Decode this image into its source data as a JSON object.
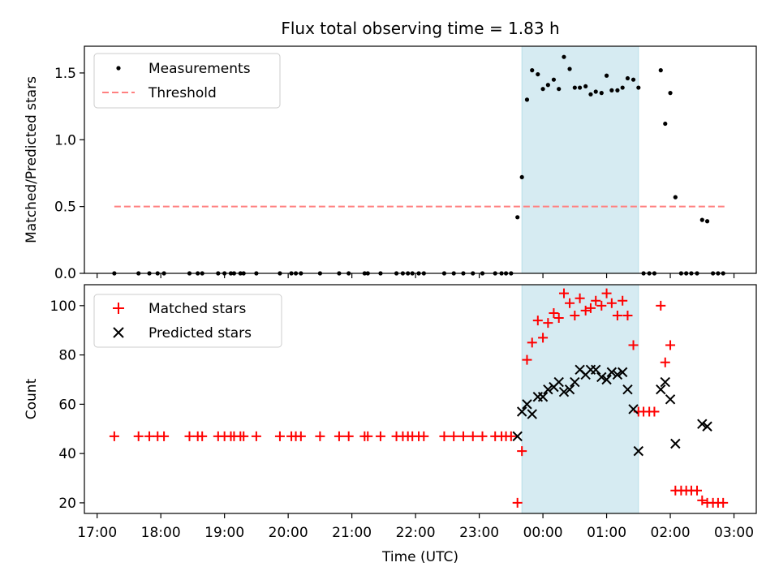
{
  "chart_data": [
    {
      "type": "scatter",
      "title": "Flux total observing time = 1.83 h",
      "xlabel": "",
      "ylabel": "Matched/Predicted stars",
      "xlim": [
        16.8,
        27.35
      ],
      "ylim": [
        0,
        1.7
      ],
      "yticks": [
        0,
        0.5,
        1.0,
        1.5
      ],
      "ytick_labels": [
        "0.0",
        "0.5",
        "1.0",
        "1.5"
      ],
      "shaded_span": [
        23.67,
        25.5
      ],
      "legend_position": "upper-left",
      "series": [
        {
          "name": "Measurements",
          "marker": "dot",
          "color": "#000000",
          "x": [
            17.27,
            17.65,
            17.82,
            17.95,
            18.05,
            18.45,
            18.58,
            18.65,
            18.9,
            19.0,
            19.1,
            19.15,
            19.25,
            19.3,
            19.5,
            19.87,
            20.05,
            20.12,
            20.2,
            20.5,
            20.8,
            20.95,
            21.2,
            21.25,
            21.45,
            21.7,
            21.8,
            21.88,
            21.95,
            22.05,
            22.13,
            22.45,
            22.6,
            22.75,
            22.9,
            23.05,
            23.25,
            23.35,
            23.42,
            23.5,
            23.6,
            23.67,
            23.75,
            23.83,
            23.92,
            24.0,
            24.08,
            24.17,
            24.25,
            24.33,
            24.42,
            24.5,
            24.58,
            24.67,
            24.75,
            24.83,
            24.92,
            25.0,
            25.08,
            25.17,
            25.25,
            25.33,
            25.42,
            25.5,
            25.58,
            25.67,
            25.75,
            25.85,
            25.92,
            26.0,
            26.08,
            26.17,
            26.25,
            26.33,
            26.42,
            26.5,
            26.58,
            26.67,
            26.75,
            26.83
          ],
          "y": [
            0,
            0,
            0,
            0,
            0,
            0,
            0,
            0,
            0,
            0,
            0,
            0,
            0,
            0,
            0,
            0,
            0,
            0,
            0,
            0,
            0,
            0,
            0,
            0,
            0,
            0,
            0,
            0,
            0,
            0,
            0,
            0,
            0,
            0,
            0,
            0,
            0,
            0,
            0,
            0,
            0.42,
            0.72,
            1.3,
            1.52,
            1.49,
            1.38,
            1.41,
            1.45,
            1.38,
            1.62,
            1.53,
            1.39,
            1.39,
            1.4,
            1.34,
            1.36,
            1.35,
            1.48,
            1.37,
            1.37,
            1.39,
            1.46,
            1.45,
            1.39,
            0,
            0,
            0,
            1.52,
            1.12,
            1.35,
            0.57,
            0,
            0,
            0,
            0,
            0.4,
            0.39,
            0,
            0,
            0
          ]
        },
        {
          "name": "Threshold",
          "style": "dashed",
          "color": "#ff8080",
          "x": [
            17.27,
            26.85
          ],
          "y": [
            0.5,
            0.5
          ]
        }
      ]
    },
    {
      "type": "scatter",
      "title": "",
      "xlabel": "Time (UTC)",
      "ylabel": "Count",
      "xlim": [
        16.8,
        27.35
      ],
      "ylim": [
        15.7,
        108.5
      ],
      "xticks": [
        17,
        18,
        19,
        20,
        21,
        22,
        23,
        24,
        25,
        26,
        27
      ],
      "xtick_labels": [
        "17:00",
        "18:00",
        "19:00",
        "20:00",
        "21:00",
        "22:00",
        "23:00",
        "00:00",
        "01:00",
        "02:00",
        "03:00"
      ],
      "yticks": [
        20,
        40,
        60,
        80,
        100
      ],
      "ytick_labels": [
        "20",
        "40",
        "60",
        "80",
        "100"
      ],
      "shaded_span": [
        23.67,
        25.5
      ],
      "legend_position": "upper-left",
      "series": [
        {
          "name": "Matched stars",
          "marker": "plus",
          "color": "#ff0000",
          "x": [
            17.27,
            17.65,
            17.82,
            17.95,
            18.05,
            18.45,
            18.58,
            18.65,
            18.9,
            19.0,
            19.1,
            19.15,
            19.25,
            19.3,
            19.5,
            19.87,
            20.05,
            20.12,
            20.2,
            20.5,
            20.8,
            20.95,
            21.2,
            21.25,
            21.45,
            21.7,
            21.8,
            21.88,
            21.95,
            22.05,
            22.13,
            22.45,
            22.6,
            22.75,
            22.9,
            23.05,
            23.25,
            23.35,
            23.42,
            23.5,
            23.6,
            23.67,
            23.75,
            23.83,
            23.92,
            24.0,
            24.08,
            24.17,
            24.25,
            24.33,
            24.42,
            24.5,
            24.58,
            24.67,
            24.75,
            24.83,
            24.92,
            25.0,
            25.08,
            25.17,
            25.25,
            25.33,
            25.42,
            25.5,
            25.58,
            25.67,
            25.75,
            25.85,
            25.92,
            26.0,
            26.08,
            26.17,
            26.25,
            26.33,
            26.42,
            26.5,
            26.58,
            26.67,
            26.75,
            26.83
          ],
          "y": [
            47,
            47,
            47,
            47,
            47,
            47,
            47,
            47,
            47,
            47,
            47,
            47,
            47,
            47,
            47,
            47,
            47,
            47,
            47,
            47,
            47,
            47,
            47,
            47,
            47,
            47,
            47,
            47,
            47,
            47,
            47,
            47,
            47,
            47,
            47,
            47,
            47,
            47,
            47,
            47,
            20,
            41,
            78,
            85,
            94,
            87,
            93,
            97,
            95,
            105,
            101,
            96,
            103,
            98,
            99,
            102,
            100,
            105,
            101,
            96,
            102,
            96,
            84,
            57,
            57,
            57,
            57,
            100,
            77,
            84,
            25,
            25,
            25,
            25,
            25,
            21,
            20,
            20,
            20,
            20
          ]
        },
        {
          "name": "Predicted stars",
          "marker": "x",
          "color": "#000000",
          "x": [
            17.27,
            17.65,
            17.82,
            17.95,
            18.05,
            18.45,
            18.58,
            18.65,
            18.9,
            19.0,
            19.1,
            19.15,
            19.25,
            19.3,
            19.5,
            19.87,
            20.05,
            20.12,
            20.2,
            20.5,
            20.8,
            20.95,
            21.2,
            21.25,
            21.45,
            21.7,
            21.8,
            21.88,
            21.95,
            22.05,
            22.13,
            22.45,
            22.6,
            22.75,
            22.9,
            23.05,
            23.25,
            23.35,
            23.42,
            23.5,
            23.6,
            23.67,
            23.75,
            23.83,
            23.92,
            24.0,
            24.08,
            24.17,
            24.25,
            24.33,
            24.42,
            24.5,
            24.58,
            24.67,
            24.75,
            24.83,
            24.92,
            25.0,
            25.08,
            25.17,
            25.25,
            25.33,
            25.42,
            25.5,
            25.58,
            25.67,
            25.75,
            25.85,
            25.92,
            26.0,
            26.08,
            26.17,
            26.25,
            26.33,
            26.42,
            26.5,
            26.58,
            26.67,
            26.75,
            26.83
          ],
          "y": [
            null,
            null,
            null,
            null,
            null,
            null,
            null,
            null,
            null,
            null,
            null,
            null,
            null,
            null,
            null,
            null,
            null,
            null,
            null,
            null,
            null,
            null,
            null,
            null,
            null,
            null,
            null,
            null,
            null,
            null,
            null,
            null,
            null,
            null,
            null,
            null,
            null,
            null,
            null,
            null,
            47,
            57,
            60,
            56,
            63,
            63,
            66,
            67,
            69,
            65,
            66,
            69,
            74,
            72,
            74,
            74,
            71,
            70,
            73,
            72,
            73,
            66,
            58,
            41,
            null,
            null,
            null,
            66,
            69,
            62,
            44,
            null,
            null,
            null,
            null,
            52,
            51,
            null,
            null,
            null
          ]
        }
      ]
    }
  ]
}
